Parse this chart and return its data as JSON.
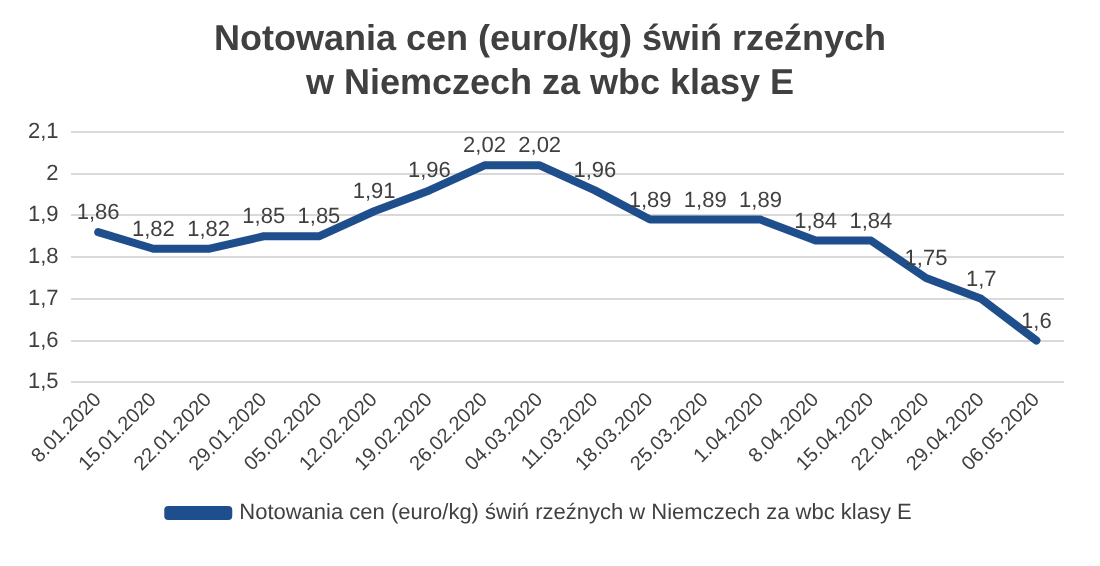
{
  "chart_data": {
    "type": "line",
    "title": "Notowania cen (euro/kg) świń rzeźnych w Niemczech za wbc klasy E",
    "categories": [
      "8.01.2020",
      "15.01.2020",
      "22.01.2020",
      "29.01.2020",
      "05.02.2020",
      "12.02.2020",
      "19.02.2020",
      "26.02.2020",
      "04.03.2020",
      "11.03.2020",
      "18.03.2020",
      "25.03.2020",
      "1.04.2020",
      "8.04.2020",
      "15.04.2020",
      "22.04.2020",
      "29.04.2020",
      "06.05.2020"
    ],
    "series": [
      {
        "name": "Notowania cen (euro/kg) świń rzeźnych w Niemczech za wbc klasy E",
        "color": "#1f4e8c",
        "values": [
          1.86,
          1.82,
          1.82,
          1.85,
          1.85,
          1.91,
          1.96,
          2.02,
          2.02,
          1.96,
          1.89,
          1.89,
          1.89,
          1.84,
          1.84,
          1.75,
          1.7,
          1.6
        ],
        "value_labels": [
          "1,86",
          "1,82",
          "1,82",
          "1,85",
          "1,85",
          "1,91",
          "1,96",
          "2,02",
          "2,02",
          "1,96",
          "1,89",
          "1,89",
          "1,89",
          "1,84",
          "1,84",
          "1,75",
          "1,7",
          "1,6"
        ]
      }
    ],
    "ylim": [
      1.5,
      2.1
    ],
    "yticks": [
      {
        "value": 1.5,
        "label": "1,5"
      },
      {
        "value": 1.6,
        "label": "1,6"
      },
      {
        "value": 1.7,
        "label": "1,7"
      },
      {
        "value": 1.8,
        "label": "1,8"
      },
      {
        "value": 1.9,
        "label": "1,9"
      },
      {
        "value": 2,
        "label": "2"
      },
      {
        "value": 2.1,
        "label": "2,1"
      }
    ],
    "grid": "y",
    "legend": "bottom",
    "marker": "none",
    "line_style": "solid"
  }
}
